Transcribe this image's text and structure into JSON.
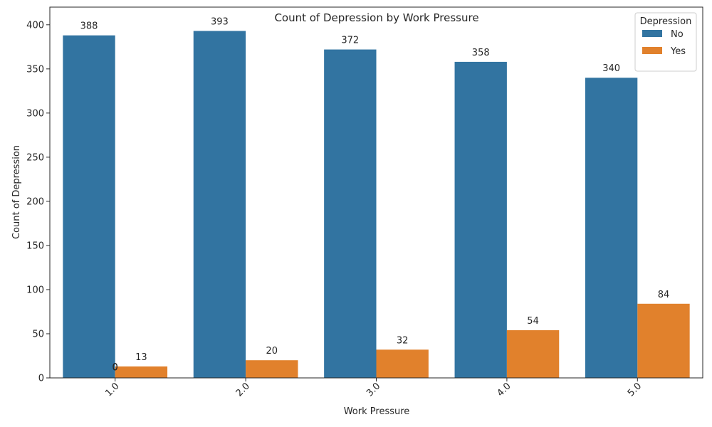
{
  "chart_data": {
    "type": "bar",
    "title": "Count of Depression by Work Pressure",
    "xlabel": "Work Pressure",
    "ylabel": "Count of Depression",
    "categories": [
      "1.0",
      "2.0",
      "3.0",
      "4.0",
      "5.0"
    ],
    "ylim": [
      0,
      420
    ],
    "yticks": [
      0,
      50,
      100,
      150,
      200,
      250,
      300,
      350,
      400
    ],
    "series": [
      {
        "name": "No",
        "color": "#3274a1",
        "values": [
          388,
          393,
          372,
          358,
          340
        ]
      },
      {
        "name": "Yes",
        "color": "#e1812c",
        "values": [
          13,
          20,
          32,
          54,
          84
        ]
      }
    ],
    "extra_labels": [
      "0",
      "0"
    ],
    "legend": {
      "title": "Depression",
      "placement": "top-right"
    },
    "grid": false
  }
}
